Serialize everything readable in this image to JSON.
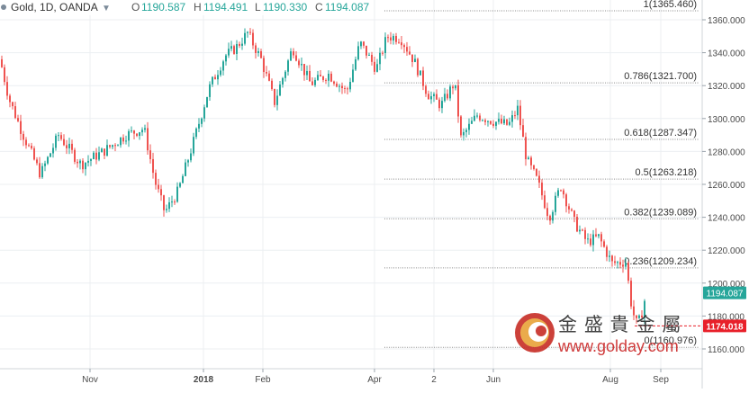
{
  "header": {
    "symbol": "Gold, 1D, OANDA",
    "open_label": "O",
    "open": "1190.587",
    "high_label": "H",
    "high": "1194.491",
    "low_label": "L",
    "low": "1190.330",
    "close_label": "C",
    "close": "1194.087"
  },
  "price_badges": {
    "last_price": "1194.087",
    "marker_price": "1174.018",
    "last_color": "#26a69a",
    "marker_color": "#e8202a"
  },
  "watermark": {
    "chinese": "金 盛 貴 金 屬",
    "url": "www.golday.com"
  },
  "colors": {
    "up": "#26a69a",
    "down": "#ef5350",
    "grid": "#eceff2",
    "fib": "#8a8a8a"
  },
  "chart_data": {
    "type": "candlestick",
    "title": "",
    "ylim": [
      1150,
      1372
    ],
    "y_ticks": [
      "1160.000",
      "1180.000",
      "1200.000",
      "1220.000",
      "1240.000",
      "1260.000",
      "1280.000",
      "1300.000",
      "1320.000",
      "1340.000",
      "1360.000"
    ],
    "x_tick_labels": [
      "Nov",
      "2018",
      "Feb",
      "Apr",
      "2",
      "Jun",
      "Aug",
      "Sep"
    ],
    "fibonacci": [
      {
        "ratio": "1",
        "price": 1365.46,
        "label": "1(1365.460)"
      },
      {
        "ratio": "0.786",
        "price": 1321.7,
        "label": "0.786(1321.700)"
      },
      {
        "ratio": "0.618",
        "price": 1287.347,
        "label": "0.618(1287.347)"
      },
      {
        "ratio": "0.5",
        "price": 1263.218,
        "label": "0.5(1263.218)"
      },
      {
        "ratio": "0.382",
        "price": 1239.089,
        "label": "0.382(1239.089)"
      },
      {
        "ratio": "0.236",
        "price": 1209.234,
        "label": "0.236(1209.234)"
      },
      {
        "ratio": "0",
        "price": 1160.976,
        "label": "0(1160.976)"
      }
    ],
    "close_path": [
      {
        "x": 0,
        "close": 1336
      },
      {
        "x": 10,
        "close": 1312
      },
      {
        "x": 25,
        "close": 1291
      },
      {
        "x": 45,
        "close": 1266
      },
      {
        "x": 65,
        "close": 1290
      },
      {
        "x": 90,
        "close": 1272
      },
      {
        "x": 115,
        "close": 1280
      },
      {
        "x": 140,
        "close": 1290
      },
      {
        "x": 160,
        "close": 1294
      },
      {
        "x": 172,
        "close": 1262
      },
      {
        "x": 183,
        "close": 1243
      },
      {
        "x": 198,
        "close": 1256
      },
      {
        "x": 215,
        "close": 1286
      },
      {
        "x": 232,
        "close": 1318
      },
      {
        "x": 250,
        "close": 1338
      },
      {
        "x": 262,
        "close": 1343
      },
      {
        "x": 275,
        "close": 1352
      },
      {
        "x": 290,
        "close": 1336
      },
      {
        "x": 305,
        "close": 1310
      },
      {
        "x": 325,
        "close": 1343
      },
      {
        "x": 345,
        "close": 1321
      },
      {
        "x": 365,
        "close": 1327
      },
      {
        "x": 385,
        "close": 1316
      },
      {
        "x": 400,
        "close": 1346
      },
      {
        "x": 418,
        "close": 1330
      },
      {
        "x": 430,
        "close": 1350
      },
      {
        "x": 445,
        "close": 1349
      },
      {
        "x": 460,
        "close": 1335
      },
      {
        "x": 475,
        "close": 1315
      },
      {
        "x": 490,
        "close": 1308
      },
      {
        "x": 505,
        "close": 1322
      },
      {
        "x": 512,
        "close": 1288
      },
      {
        "x": 530,
        "close": 1302
      },
      {
        "x": 550,
        "close": 1298
      },
      {
        "x": 565,
        "close": 1296
      },
      {
        "x": 575,
        "close": 1306
      },
      {
        "x": 585,
        "close": 1275
      },
      {
        "x": 597,
        "close": 1262
      },
      {
        "x": 610,
        "close": 1240
      },
      {
        "x": 623,
        "close": 1259
      },
      {
        "x": 638,
        "close": 1237
      },
      {
        "x": 652,
        "close": 1225
      },
      {
        "x": 665,
        "close": 1228
      },
      {
        "x": 680,
        "close": 1212
      },
      {
        "x": 695,
        "close": 1213
      },
      {
        "x": 702,
        "close": 1184
      },
      {
        "x": 708,
        "close": 1174
      },
      {
        "x": 712,
        "close": 1180
      },
      {
        "x": 718,
        "close": 1194
      }
    ]
  }
}
